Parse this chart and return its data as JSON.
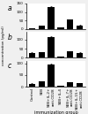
{
  "panels": [
    {
      "label": "a",
      "values": [
        5,
        18,
        130,
        8,
        55,
        22
      ],
      "yerr": [
        0.5,
        1.5,
        5,
        0.8,
        3,
        2
      ],
      "ylim": [
        0,
        150
      ],
      "yticks": [
        0,
        50,
        100,
        150
      ],
      "yticklabels": [
        "0",
        "50",
        "100",
        "150"
      ]
    },
    {
      "label": "b",
      "values": [
        28,
        30,
        115,
        5,
        35,
        28
      ],
      "yerr": [
        2,
        2,
        5,
        0.5,
        2.5,
        2
      ],
      "ylim": [
        0,
        140
      ],
      "yticks": [
        0,
        50,
        100
      ],
      "yticklabels": [
        "0",
        "50",
        "100"
      ]
    },
    {
      "label": "c",
      "values": [
        12,
        22,
        95,
        3,
        18,
        15
      ],
      "yerr": [
        1.5,
        2,
        5,
        0.5,
        1.5,
        1.5
      ],
      "ylim": [
        0,
        110
      ],
      "yticks": [
        0,
        50,
        100
      ],
      "yticklabels": [
        "0",
        "50",
        "100"
      ]
    }
  ],
  "categories": [
    "Control",
    "SEB",
    "SEB+IL-2+\nanti-CD28",
    "SEB+IL-4",
    "SEB+IL-7+\nanti-CD28",
    "SEB+IL-15+\nanti-CD28"
  ],
  "shared_ylabel": "concentration (pg/ml)",
  "xlabel": "immunization group",
  "bar_color": "#000000",
  "background_color": "#f0f0f0",
  "panel_bg": "#ffffff",
  "bar_width": 0.7,
  "tick_fontsize": 3.0,
  "label_fontsize": 5.5,
  "xlabel_fontsize": 3.5,
  "ylabel_fontsize": 3.0
}
